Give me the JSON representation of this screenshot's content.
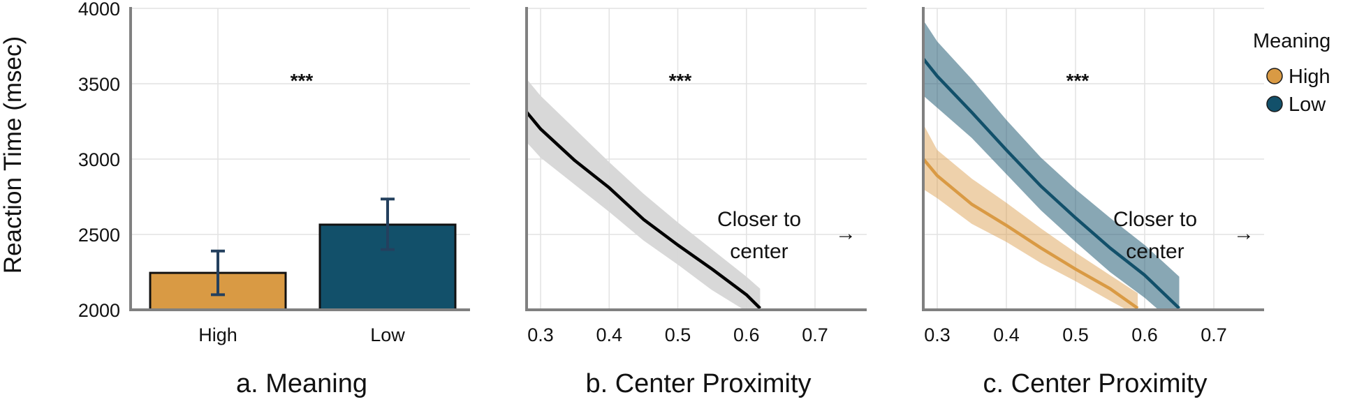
{
  "colors": {
    "high": "#D99A44",
    "low": "#12506A",
    "fit": "#000000",
    "band": "#D6D6D6"
  },
  "chart_data": [
    {
      "type": "bar",
      "title": "a. Meaning",
      "ylabel": "Reaction Time (msec)",
      "ylim": [
        2000,
        4000
      ],
      "yticks": [
        "2000",
        "2500",
        "3000",
        "3500",
        "4000"
      ],
      "categories": [
        "High",
        "Low"
      ],
      "values": [
        2245,
        2565
      ],
      "error_low": [
        2100,
        2400
      ],
      "error_high": [
        2390,
        2735
      ],
      "significance": "***",
      "grid": true
    },
    {
      "type": "line",
      "title": "b. Center Proximity",
      "ylim": [
        2000,
        4000
      ],
      "xlim": [
        0.28,
        0.76
      ],
      "xticks": [
        "0.3",
        "0.4",
        "0.5",
        "0.6",
        "0.7"
      ],
      "significance": "***",
      "annotation": [
        "Closer to",
        "center"
      ],
      "annotation_arrow": "→",
      "grid": true,
      "series": [
        {
          "x": [
            0.28,
            0.3,
            0.35,
            0.4,
            0.45,
            0.5,
            0.55,
            0.6,
            0.62
          ],
          "y": [
            3310,
            3200,
            2990,
            2810,
            2600,
            2430,
            2270,
            2100,
            2010
          ],
          "lower": [
            3110,
            3010,
            2830,
            2650,
            2460,
            2300,
            2130,
            1990,
            1950
          ],
          "upper": [
            3530,
            3420,
            3200,
            2980,
            2770,
            2580,
            2400,
            2220,
            2140
          ]
        }
      ]
    },
    {
      "type": "line",
      "title": "c. Center Proximity",
      "ylim": [
        2000,
        4000
      ],
      "xlim": [
        0.28,
        0.76
      ],
      "xticks": [
        "0.3",
        "0.4",
        "0.5",
        "0.6",
        "0.7"
      ],
      "significance": "***",
      "annotation": [
        "Closer to",
        "center"
      ],
      "annotation_arrow": "→",
      "grid": true,
      "legend": {
        "title": "Meaning",
        "position": "right"
      },
      "series": [
        {
          "name": "High",
          "x": [
            0.28,
            0.3,
            0.35,
            0.4,
            0.45,
            0.5,
            0.55,
            0.59
          ],
          "y": [
            3000,
            2890,
            2700,
            2560,
            2410,
            2270,
            2140,
            2010
          ],
          "lower": [
            2800,
            2740,
            2570,
            2450,
            2310,
            2190,
            2060,
            1960
          ],
          "upper": [
            3230,
            3060,
            2870,
            2710,
            2540,
            2380,
            2230,
            2110
          ]
        },
        {
          "name": "Low",
          "x": [
            0.28,
            0.3,
            0.35,
            0.4,
            0.45,
            0.5,
            0.55,
            0.6,
            0.65
          ],
          "y": [
            3665,
            3550,
            3310,
            3060,
            2820,
            2610,
            2410,
            2230,
            2010
          ],
          "lower": [
            3420,
            3340,
            3140,
            2900,
            2660,
            2450,
            2250,
            2080,
            1880
          ],
          "upper": [
            3920,
            3780,
            3530,
            3260,
            3010,
            2800,
            2610,
            2430,
            2220
          ]
        }
      ]
    }
  ]
}
